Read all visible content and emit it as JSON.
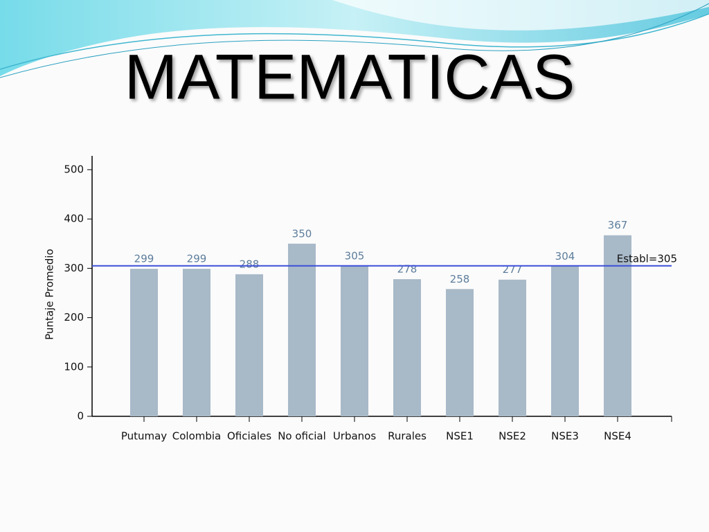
{
  "chart_data": {
    "type": "bar",
    "title": "MATEMATICAS",
    "y_label": "Puntaje Promedio",
    "categories": [
      "Putumay",
      "Colombia",
      "Oficiales",
      "No oficial",
      "Urbanos",
      "Rurales",
      "NSE1",
      "NSE2",
      "NSE3",
      "NSE4"
    ],
    "values": [
      299,
      299,
      288,
      350,
      305,
      278,
      258,
      277,
      304,
      367
    ],
    "color": "#a8b9c8",
    "value_label_color": "#5d7d9c",
    "reference_line": {
      "value": 305,
      "label": "Establ=305",
      "color": "#3c4fd8"
    },
    "ylim": [
      0,
      528
    ],
    "yticks": [
      0,
      100,
      200,
      300,
      400,
      500
    ],
    "grid": false
  }
}
